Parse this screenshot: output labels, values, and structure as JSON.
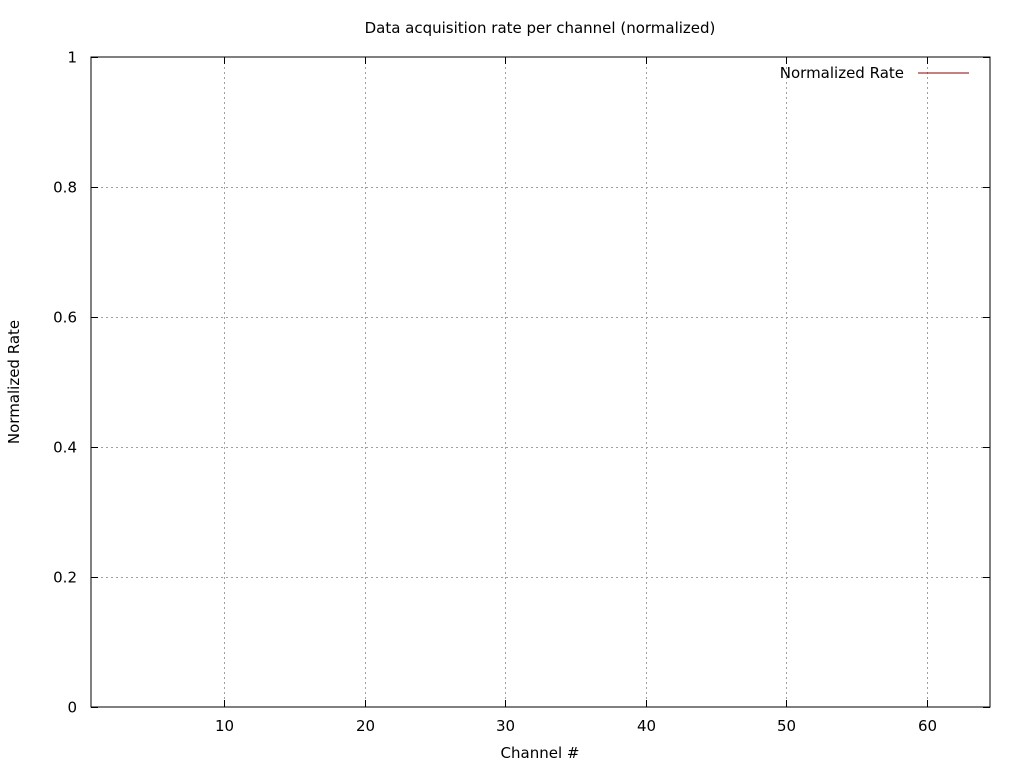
{
  "chart_data": {
    "type": "line",
    "title": "Data acquisition rate per channel (normalized)",
    "xlabel": "Channel #",
    "ylabel": "Normalized Rate",
    "xlim": [
      0.5,
      64.5
    ],
    "ylim": [
      0,
      1
    ],
    "xticks": [
      10,
      20,
      30,
      40,
      50,
      60
    ],
    "yticks": [
      0,
      0.2,
      0.4,
      0.6,
      0.8,
      1
    ],
    "xtick_labels": [
      "10",
      "20",
      "30",
      "40",
      "50",
      "60"
    ],
    "ytick_labels": [
      "0",
      "0.2",
      "0.4",
      "0.6",
      "0.8",
      "1"
    ],
    "grid": true,
    "legend_position": "top-right",
    "series": [
      {
        "name": "Normalized Rate",
        "color": "#8b0000",
        "x": [],
        "y": []
      }
    ]
  }
}
